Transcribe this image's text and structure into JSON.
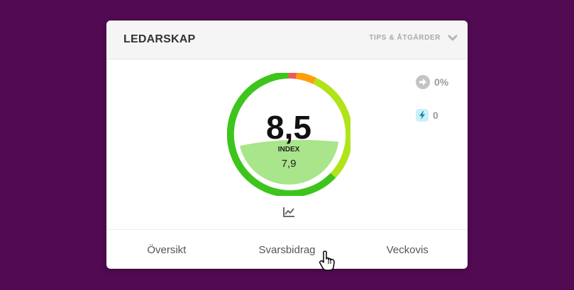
{
  "card": {
    "title": "LEDARSKAP",
    "tips_label": "TIPS & ÅTGÄRDER"
  },
  "gauge": {
    "score": "8,5",
    "index_label": "INDEX",
    "index_value": "7,9",
    "score_fraction": 0.85,
    "index_fraction": 0.79,
    "colors": {
      "ring_dark_green": "#3dc51d",
      "ring_lime": "#b2e31a",
      "ring_orange": "#ff9d0a",
      "ring_red": "#ee5a5a",
      "fill_light_green": "#a9e58a"
    }
  },
  "stats": [
    {
      "icon": "arrow-right-circle-icon",
      "value": "0%"
    },
    {
      "icon": "lightning-icon",
      "value": "0"
    }
  ],
  "tabs": [
    {
      "label": "Översikt"
    },
    {
      "label": "Svarsbidrag"
    },
    {
      "label": "Veckovis"
    }
  ],
  "colors": {
    "background": "#520a52",
    "card": "#ffffff",
    "header": "#f5f5f5"
  }
}
